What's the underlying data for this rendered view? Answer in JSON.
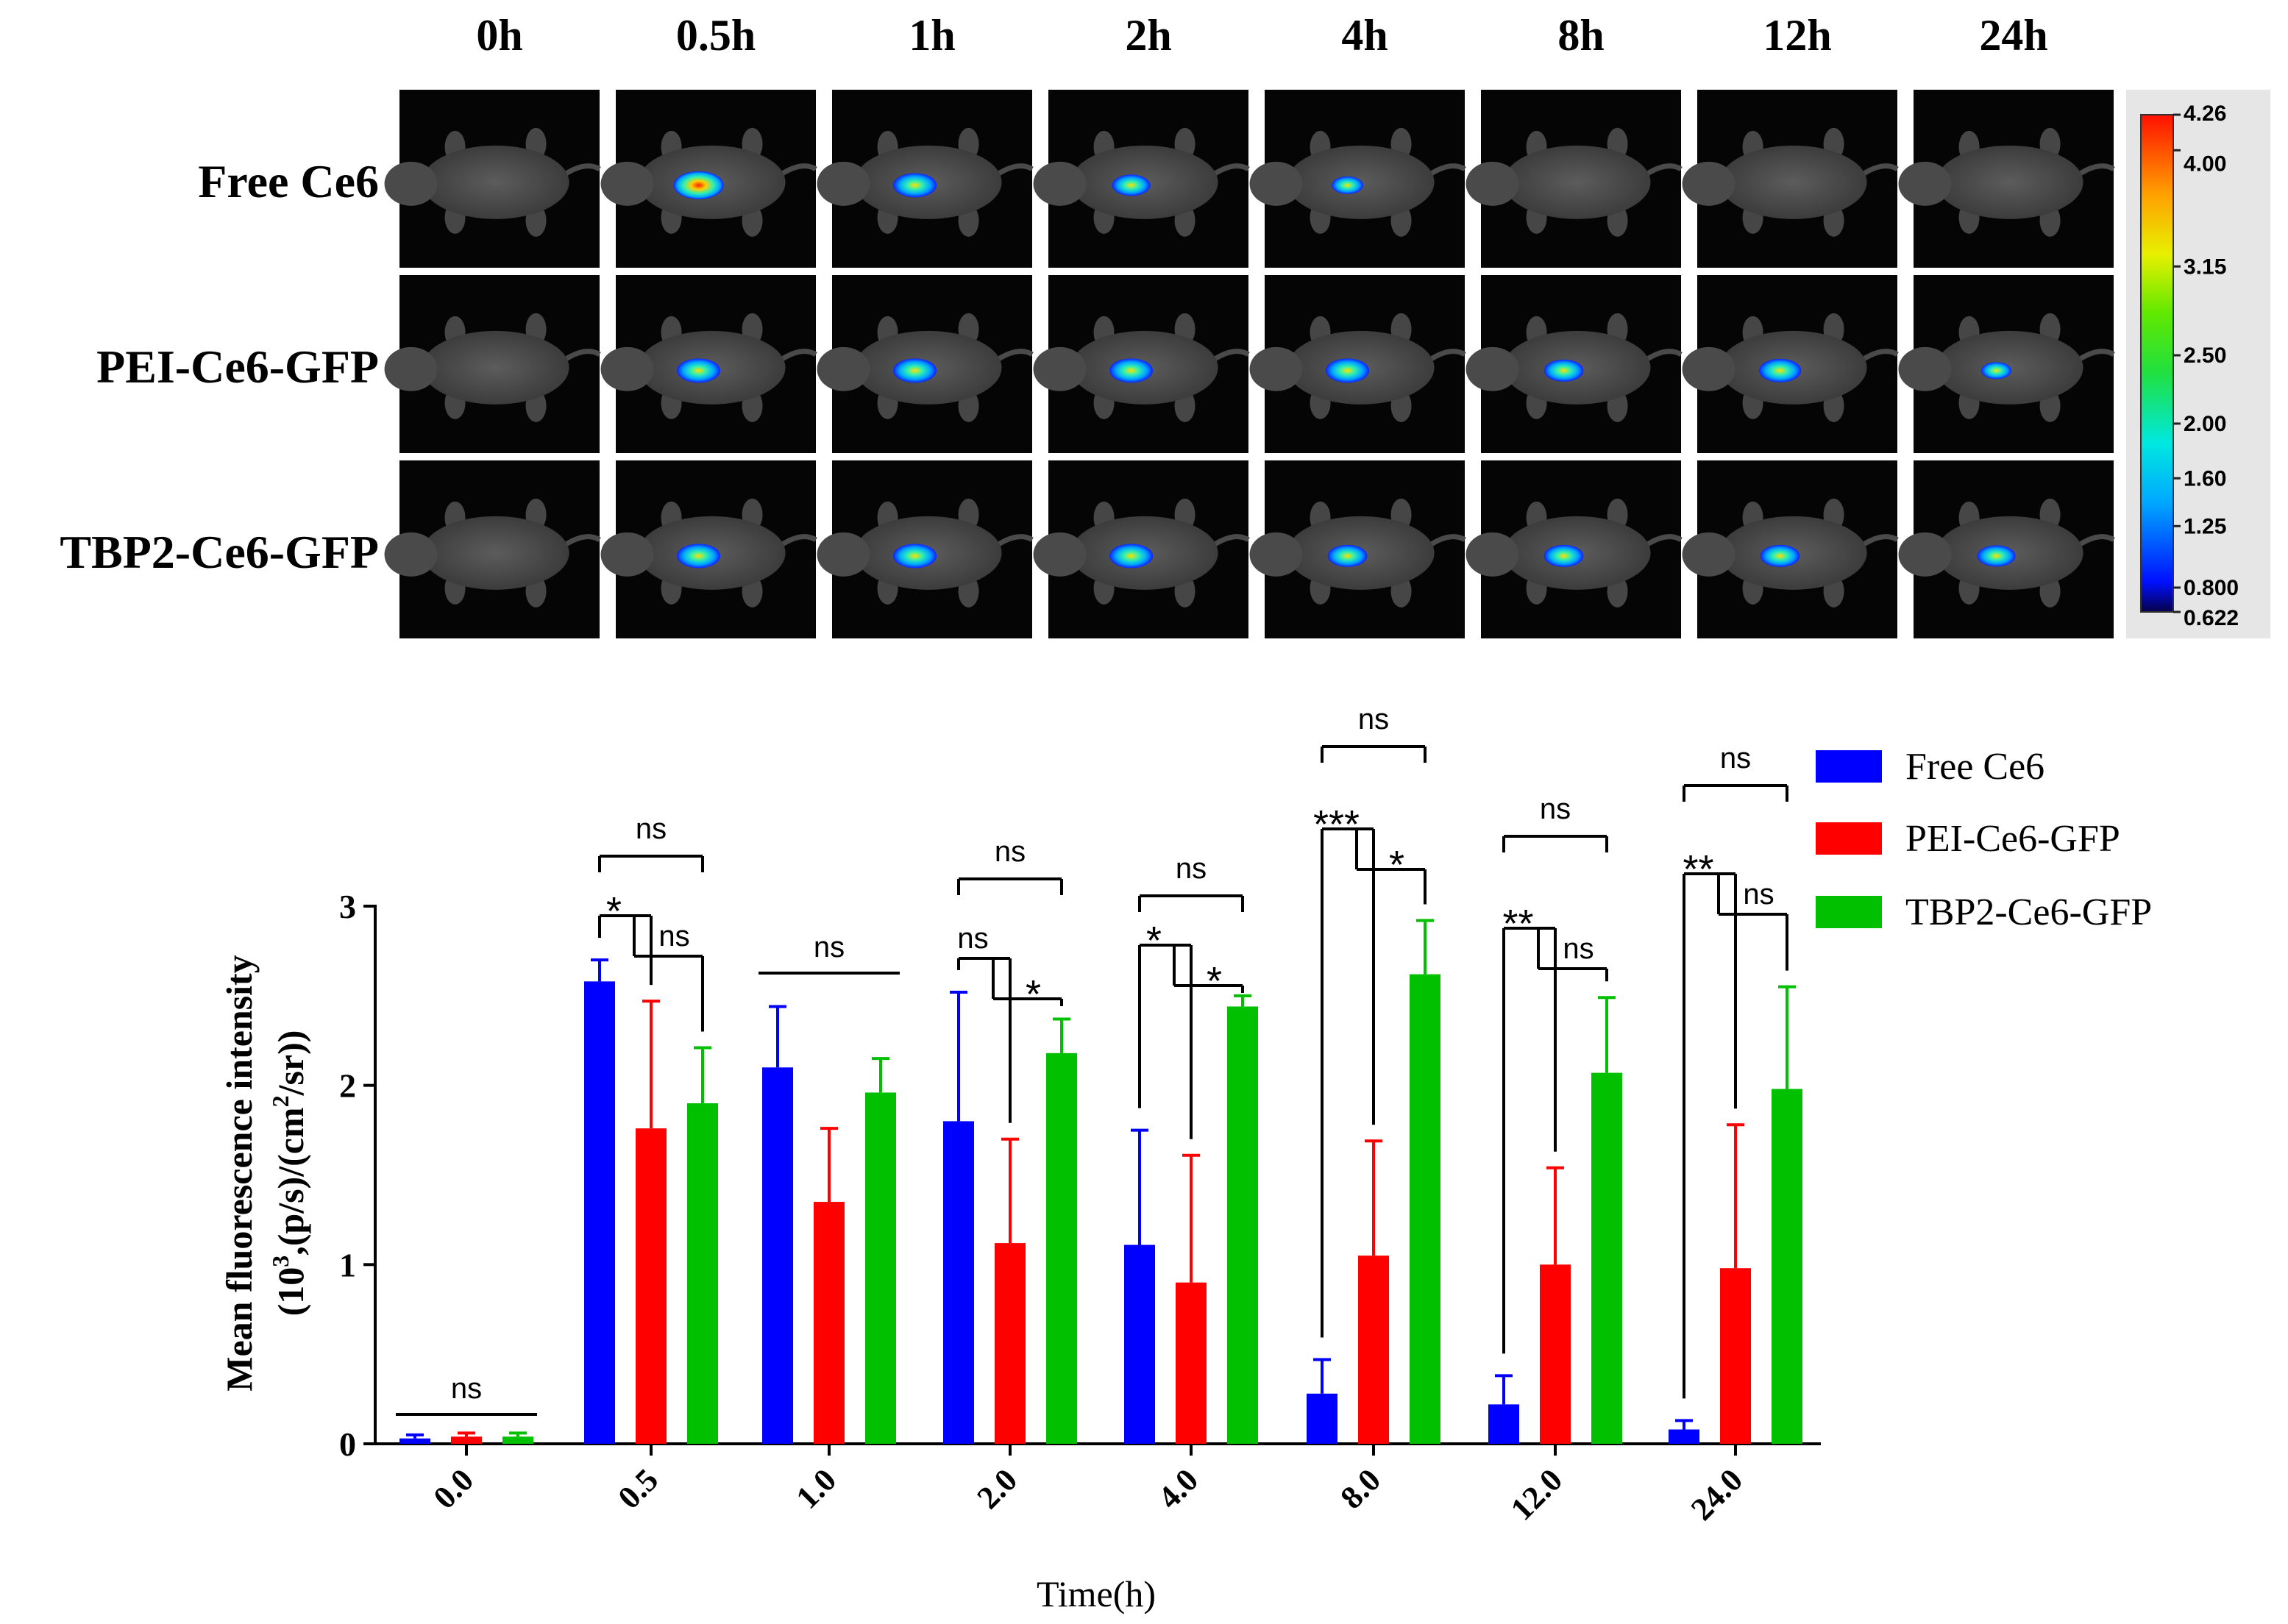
{
  "image_panel": {
    "time_labels": [
      "0h",
      "0.5h",
      "1h",
      "2h",
      "4h",
      "8h",
      "12h",
      "24h"
    ],
    "rows": [
      {
        "label": "Free Ce6",
        "signal": [
          0,
          1.0,
          0.75,
          0.55,
          0.3,
          0,
          0,
          0
        ]
      },
      {
        "label": "PEI-Ce6-GFP",
        "signal": [
          0,
          0.75,
          0.75,
          0.75,
          0.75,
          0.6,
          0.7,
          0.25
        ]
      },
      {
        "label": "TBP2-Ce6-GFP",
        "signal": [
          0,
          0.75,
          0.75,
          0.75,
          0.6,
          0.6,
          0.6,
          0.55
        ]
      }
    ],
    "colorbar": {
      "ticks": [
        "4.26",
        "4.00",
        "3.15",
        "2.50",
        "2.00",
        "1.60",
        "1.25",
        "0.800",
        "0.622"
      ],
      "tick_values": [
        4.26,
        4.0,
        3.15,
        2.5,
        2.0,
        1.6,
        1.25,
        0.8,
        0.622
      ],
      "min": 0.622,
      "max": 4.26,
      "colors": [
        "#0a0070",
        "#1020ff",
        "#00b8ff",
        "#00e0c0",
        "#40e030",
        "#d8f000",
        "#ffd000",
        "#ff7000",
        "#ff1000"
      ]
    }
  },
  "chart_data": {
    "type": "bar",
    "title": "",
    "xlabel": "Time(h)",
    "ylabel_line1": "Mean fluorescence intensity",
    "ylabel_line2_parts": [
      "(10",
      "3",
      ",(p/s)/(cm",
      "2",
      "/sr))"
    ],
    "ylim": [
      0,
      3
    ],
    "yticks": [
      0,
      1,
      2,
      3
    ],
    "categories": [
      "0.0",
      "0.5",
      "1.0",
      "2.0",
      "4.0",
      "8.0",
      "12.0",
      "24.0"
    ],
    "series": [
      {
        "name": "Free Ce6",
        "color": "#0000ff",
        "values": [
          0.03,
          2.58,
          2.1,
          1.8,
          1.11,
          0.28,
          0.22,
          0.08
        ],
        "errors": [
          0.02,
          0.12,
          0.34,
          0.72,
          0.64,
          0.19,
          0.16,
          0.05
        ]
      },
      {
        "name": "PEI-Ce6-GFP",
        "color": "#ff0000",
        "values": [
          0.04,
          1.76,
          1.35,
          1.12,
          0.9,
          1.05,
          1.0,
          0.98
        ],
        "errors": [
          0.02,
          0.71,
          0.41,
          0.58,
          0.71,
          0.64,
          0.54,
          0.8
        ]
      },
      {
        "name": "TBP2-Ce6-GFP",
        "color": "#00c000",
        "values": [
          0.04,
          1.9,
          1.96,
          2.18,
          2.44,
          2.62,
          2.07,
          1.98
        ],
        "errors": [
          0.02,
          0.31,
          0.19,
          0.19,
          0.06,
          0.3,
          0.42,
          0.57
        ]
      }
    ],
    "legend_position": "right",
    "significance": [
      {
        "group": 0,
        "type": "line",
        "label": "ns"
      },
      {
        "group": 1,
        "type": "bracket",
        "top_label": "ns",
        "left_label": "*",
        "right_label": "ns"
      },
      {
        "group": 2,
        "type": "line",
        "label": "ns"
      },
      {
        "group": 3,
        "type": "bracket",
        "top_label": "ns",
        "left_label": "ns",
        "right_label": "*"
      },
      {
        "group": 4,
        "type": "bracket",
        "top_label": "ns",
        "left_label": "*",
        "right_label": "*"
      },
      {
        "group": 5,
        "type": "bracket",
        "top_label": "ns",
        "left_label": "***",
        "right_label": "*"
      },
      {
        "group": 6,
        "type": "bracket",
        "top_label": "ns",
        "left_label": "**",
        "right_label": "ns"
      },
      {
        "group": 7,
        "type": "bracket",
        "top_label": "ns",
        "left_label": "**",
        "right_label": "ns"
      }
    ]
  }
}
